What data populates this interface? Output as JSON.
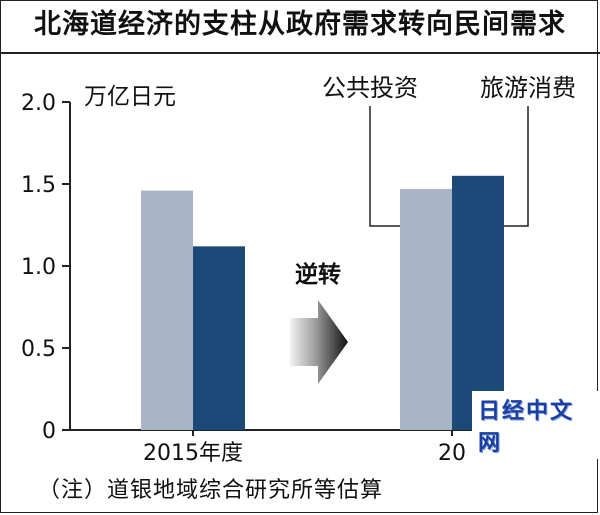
{
  "title": "北海道经济的支柱从政府需求转向民间需求",
  "unit": "万亿日元",
  "arrow_label": "逆转",
  "note": "（注）道银地域综合研究所等估算",
  "watermark": "日经中文网",
  "colors": {
    "public_investment": "#a9b4c6",
    "consumption": "#1b4a78",
    "axis": "#222222"
  },
  "chart_data": {
    "type": "bar",
    "title": "北海道经济的支柱从政府需求转向民间需求",
    "ylabel": "万亿日元",
    "ylim": [
      0,
      2.0
    ],
    "yticks": [
      "0",
      "0.5",
      "1.0",
      "1.5",
      "2.0"
    ],
    "categories": [
      "2015年度",
      "20"
    ],
    "series": [
      {
        "name": "公共投资",
        "values": [
          1.46,
          1.47
        ]
      },
      {
        "name": "旅游消费",
        "values": [
          1.12,
          1.55
        ]
      }
    ],
    "annotations": [
      "逆转"
    ]
  }
}
